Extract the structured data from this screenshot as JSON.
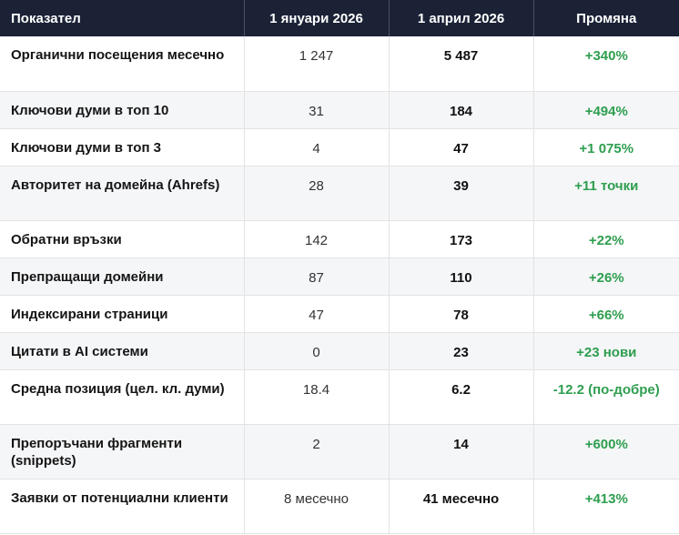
{
  "table": {
    "headers": [
      "Показател",
      "1 януари 2026",
      "1 април 2026",
      "Промяна"
    ],
    "rows": [
      {
        "metric": "Органични посещения месечно",
        "jan": "1 247",
        "apr": "5 487",
        "change": "+340%"
      },
      {
        "metric": "Ключови думи в топ 10",
        "jan": "31",
        "apr": "184",
        "change": "+494%"
      },
      {
        "metric": "Ключови думи в топ 3",
        "jan": "4",
        "apr": "47",
        "change": "+1 075%"
      },
      {
        "metric": "Авторитет на домейна (Ahrefs)",
        "jan": "28",
        "apr": "39",
        "change": "+11 точки"
      },
      {
        "metric": "Обратни връзки",
        "jan": "142",
        "apr": "173",
        "change": "+22%"
      },
      {
        "metric": "Препращащи домейни",
        "jan": "87",
        "apr": "110",
        "change": "+26%"
      },
      {
        "metric": "Индексирани страници",
        "jan": "47",
        "apr": "78",
        "change": "+66%"
      },
      {
        "metric": "Цитати в AI системи",
        "jan": "0",
        "apr": "23",
        "change": "+23 нови"
      },
      {
        "metric": "Средна позиция (цел. кл. думи)",
        "jan": "18.4",
        "apr": "6.2",
        "change": "-12.2 (по-добре)"
      },
      {
        "metric": "Препоръчани фрагменти (snippets)",
        "jan": "2",
        "apr": "14",
        "change": "+600%"
      },
      {
        "metric": "Заявки от потенциални клиенти",
        "jan": "8 месечно",
        "apr": "41 месечно",
        "change": "+413%"
      }
    ]
  },
  "colors": {
    "header_bg": "#1b2236",
    "header_text": "#ffffff",
    "positive_change": "#2e9e4f",
    "row_alt_bg": "#f5f6f8"
  }
}
